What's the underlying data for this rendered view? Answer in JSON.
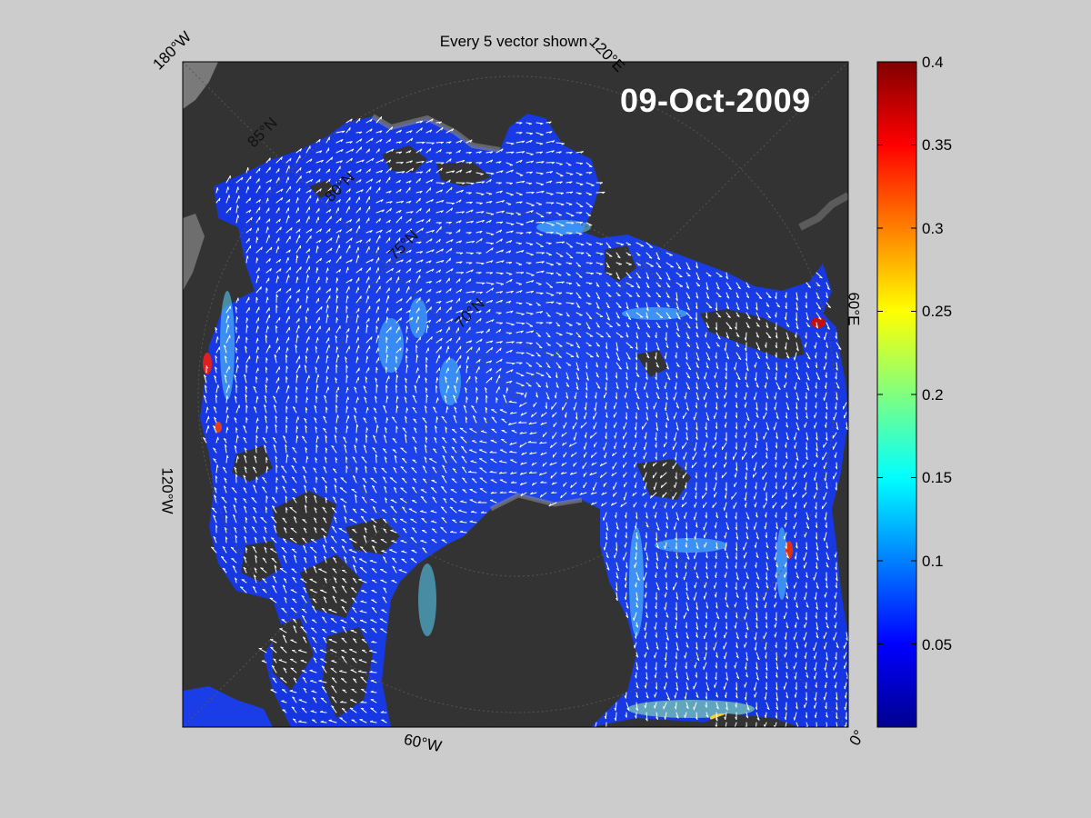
{
  "title": "Every 5 vector shown",
  "date": "09-Oct-2009",
  "lon_labels": {
    "w180": "180°W",
    "e120": "120°E",
    "e60": "60°E",
    "w120": "120°W",
    "w60": "60°W",
    "zero": "0°"
  },
  "lat_labels": [
    "85°N",
    "80°N",
    "75°N",
    "70°N"
  ],
  "colorbar": {
    "min": 0,
    "max": 0.4,
    "ticks": [
      "0.4",
      "0.35",
      "0.3",
      "0.25",
      "0.2",
      "0.15",
      "0.1",
      "0.05"
    ]
  },
  "colors": {
    "background": "#cccccc",
    "land": "#333333",
    "ice_base": "#1733e6",
    "vector": "#ffffff"
  }
}
